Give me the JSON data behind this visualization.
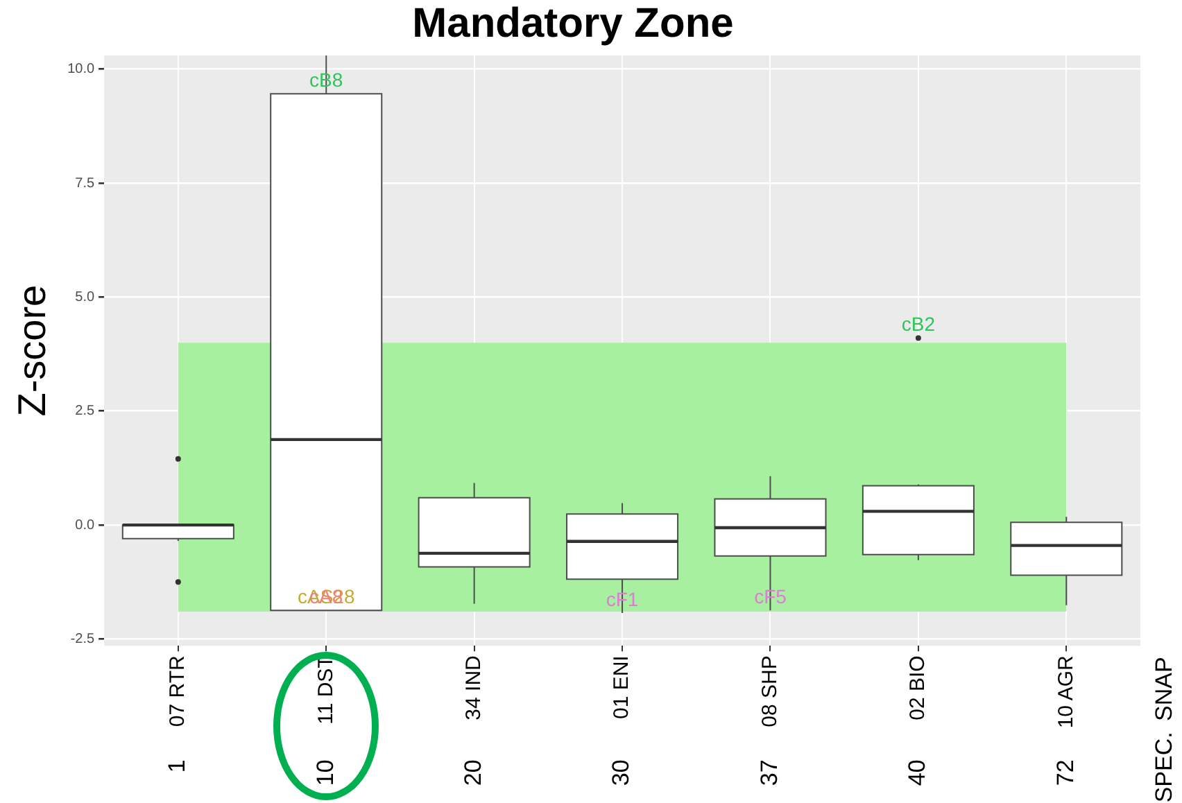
{
  "chart_data": {
    "type": "box",
    "title": "Mandatory Zone",
    "ylabel": "Z-score",
    "categories": [
      "07 RTR",
      "11 DST",
      "34 IND",
      "01 ENI",
      "08 SHP",
      "02 BIO",
      "10 AGR"
    ],
    "boxes": [
      {
        "low": -0.35,
        "q1": -0.3,
        "median": 0.0,
        "q3": 0.0,
        "high": 0.0,
        "outliers": [
          1.45,
          -1.25
        ]
      },
      {
        "low": -1.875,
        "q1": -1.875,
        "median": 1.875,
        "q3": 9.46,
        "high": 10.3
      },
      {
        "low": -1.73,
        "q1": -0.92,
        "median": -0.62,
        "q3": 0.6,
        "high": 0.92
      },
      {
        "low": -1.93,
        "q1": -1.19,
        "median": -0.36,
        "q3": 0.24,
        "high": 0.48
      },
      {
        "low": -1.875,
        "q1": -0.68,
        "median": -0.06,
        "q3": 0.57,
        "high": 1.07
      },
      {
        "low": -0.77,
        "q1": -0.65,
        "median": 0.3,
        "q3": 0.86,
        "high": 0.89,
        "outliers": [
          4.1
        ]
      },
      {
        "low": -1.76,
        "q1": -1.1,
        "median": -0.45,
        "q3": 0.06,
        "high": 0.18
      }
    ],
    "ylim": [
      -2.65,
      10.3
    ],
    "yticks": [
      -2.5,
      {
        "value": 0,
        "label": "0.0"
      },
      2.5,
      {
        "value": 5,
        "label": "5.0"
      },
      7.5,
      {
        "value": 10,
        "label": "10.0"
      }
    ],
    "grid": true,
    "bands": [
      {
        "axis": "y",
        "from": -1.9,
        "to": 4.0,
        "color": "#a6f0a0"
      }
    ],
    "annotations": [
      "SNAP",
      "SPEC.",
      "1",
      "10",
      "20",
      "30",
      "37",
      "40",
      "72",
      {
        "text": "cB8",
        "x": "11 DST",
        "y": 9.46
      },
      {
        "text": "cAS28",
        "x": "11 DST",
        "y": -1.875
      },
      {
        "text": "cA8",
        "x": "11 DST",
        "y": -1.875
      },
      {
        "text": "cF1",
        "x": "01 ENI",
        "y": -1.93
      },
      {
        "text": "cF5",
        "x": "08 SHP",
        "y": -1.875
      },
      {
        "text": "cB2",
        "x": "02 BIO",
        "y": 4.1
      }
    ]
  }
}
